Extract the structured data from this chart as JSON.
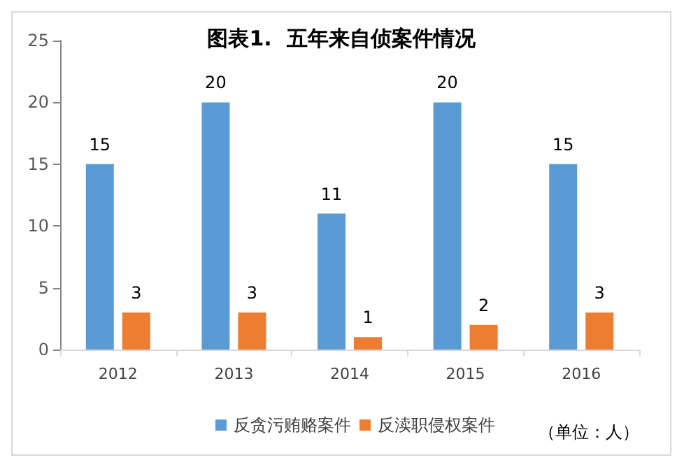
{
  "chart_data": {
    "type": "bar",
    "title": "图表1.  五年来自侦案件情况",
    "categories": [
      "2012",
      "2013",
      "2014",
      "2015",
      "2016"
    ],
    "series": [
      {
        "name": "反贪污贿赂案件",
        "color": "#5b9bd5",
        "values": [
          15,
          20,
          11,
          20,
          15
        ]
      },
      {
        "name": "反渎职侵权案件",
        "color": "#ed7d31",
        "values": [
          3,
          3,
          1,
          2,
          3
        ]
      }
    ],
    "ylim": [
      0,
      25
    ],
    "yticks": [
      0,
      5,
      10,
      15,
      20,
      25
    ],
    "grid": false,
    "legend": "bottom",
    "data_labels": true,
    "annotations": [
      "（单位：人）"
    ]
  }
}
